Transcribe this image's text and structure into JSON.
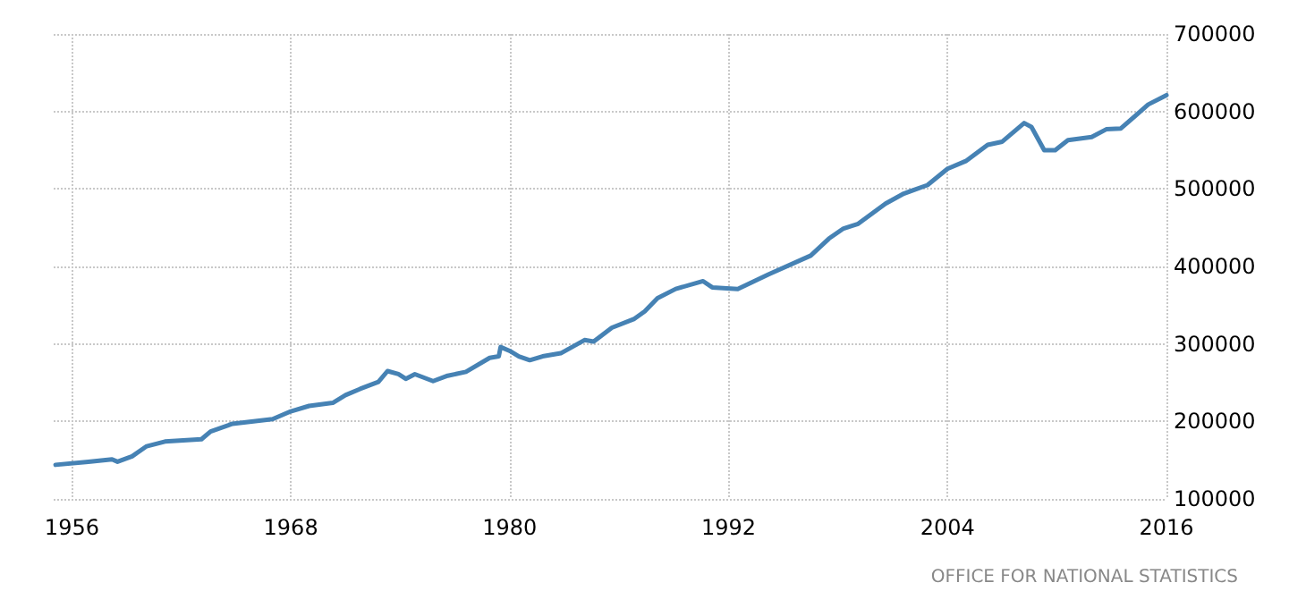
{
  "chart_data": {
    "type": "line",
    "annotations": [
      "OFFICE FOR NATIONAL STATISTICS"
    ],
    "x": [
      1955.1,
      1956.9,
      1958.2,
      1958.5,
      1959.3,
      1960.1,
      1961.1,
      1963.1,
      1963.6,
      1964.8,
      1967.0,
      1968.0,
      1969.0,
      1970.3,
      1971.0,
      1971.8,
      1972.8,
      1973.3,
      1973.9,
      1974.3,
      1974.8,
      1975.8,
      1976.6,
      1977.6,
      1978.9,
      1979.4,
      1979.5,
      1980.0,
      1980.5,
      1981.1,
      1981.8,
      1982.8,
      1984.1,
      1984.6,
      1985.6,
      1986.8,
      1987.4,
      1988.1,
      1989.1,
      1990.6,
      1991.1,
      1992.5,
      1994.2,
      1996.5,
      1997.5,
      1998.3,
      1999.1,
      2000.6,
      2001.6,
      2002.9,
      2004.0,
      2005.0,
      2006.2,
      2007.0,
      2008.2,
      2008.6,
      2009.3,
      2009.9,
      2010.6,
      2011.9,
      2012.7,
      2013.5,
      2015.0,
      2016.0
    ],
    "series": [
      {
        "color": "#4682b4",
        "values": [
          144000,
          148000,
          151000,
          148000,
          155000,
          168000,
          174000,
          177000,
          187000,
          197000,
          203000,
          213000,
          220000,
          224000,
          234000,
          242000,
          251000,
          265000,
          261000,
          255000,
          261000,
          252000,
          259000,
          264000,
          282000,
          284000,
          296000,
          291000,
          284000,
          279000,
          284000,
          288000,
          305000,
          303000,
          321000,
          332000,
          342000,
          359000,
          371000,
          381000,
          373000,
          371000,
          390000,
          414000,
          436000,
          449000,
          455000,
          481000,
          494000,
          505000,
          526000,
          536000,
          557000,
          561000,
          585000,
          580000,
          550000,
          550000,
          563000,
          567000,
          577000,
          578000,
          609000,
          621000
        ]
      }
    ],
    "xlim": [
      1955,
      2016
    ],
    "xticks": [
      1956,
      1968,
      1980,
      1992,
      2004,
      2016
    ],
    "ylim": [
      100000,
      700000
    ],
    "yticks": [
      100000,
      200000,
      300000,
      400000,
      500000,
      600000,
      700000
    ],
    "grid": true,
    "marker": "none",
    "line_style": "solid"
  }
}
